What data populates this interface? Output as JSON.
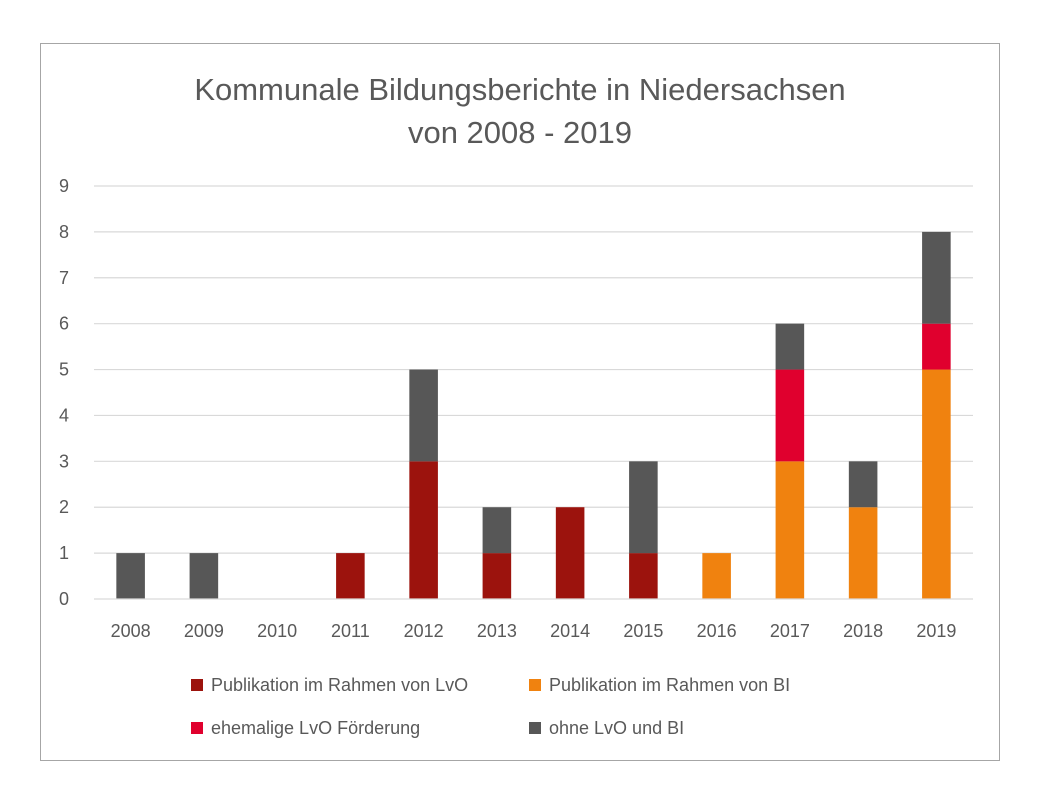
{
  "chart_data": {
    "type": "bar",
    "stacked": true,
    "title_line1": "Kommunale Bildungsberichte  in Niedersachsen",
    "title_line2": "von 2008 - 2019",
    "xlabel": "",
    "ylabel": "",
    "ylim": [
      0,
      9
    ],
    "yticks": [
      "0",
      "1",
      "2",
      "3",
      "4",
      "5",
      "6",
      "7",
      "8",
      "9"
    ],
    "grid": true,
    "legend_position": "bottom",
    "categories": [
      "2008",
      "2009",
      "2010",
      "2011",
      "2012",
      "2013",
      "2014",
      "2015",
      "2016",
      "2017",
      "2018",
      "2019"
    ],
    "series": [
      {
        "name": "Publikation im Rahmen von LvO",
        "color": "#9c130d",
        "values": [
          0,
          0,
          0,
          1,
          3,
          1,
          2,
          1,
          0,
          0,
          0,
          0
        ]
      },
      {
        "name": "Publikation im Rahmen von BI",
        "color": "#f0820f",
        "values": [
          0,
          0,
          0,
          0,
          0,
          0,
          0,
          0,
          1,
          3,
          2,
          5
        ]
      },
      {
        "name": "ehemalige LvO Förderung",
        "color": "#e0002e",
        "values": [
          0,
          0,
          0,
          0,
          0,
          0,
          0,
          0,
          0,
          2,
          0,
          1
        ]
      },
      {
        "name": "ohne LvO und BI",
        "color": "#575757",
        "values": [
          1,
          1,
          0,
          0,
          2,
          1,
          0,
          2,
          0,
          1,
          1,
          2
        ]
      }
    ]
  }
}
